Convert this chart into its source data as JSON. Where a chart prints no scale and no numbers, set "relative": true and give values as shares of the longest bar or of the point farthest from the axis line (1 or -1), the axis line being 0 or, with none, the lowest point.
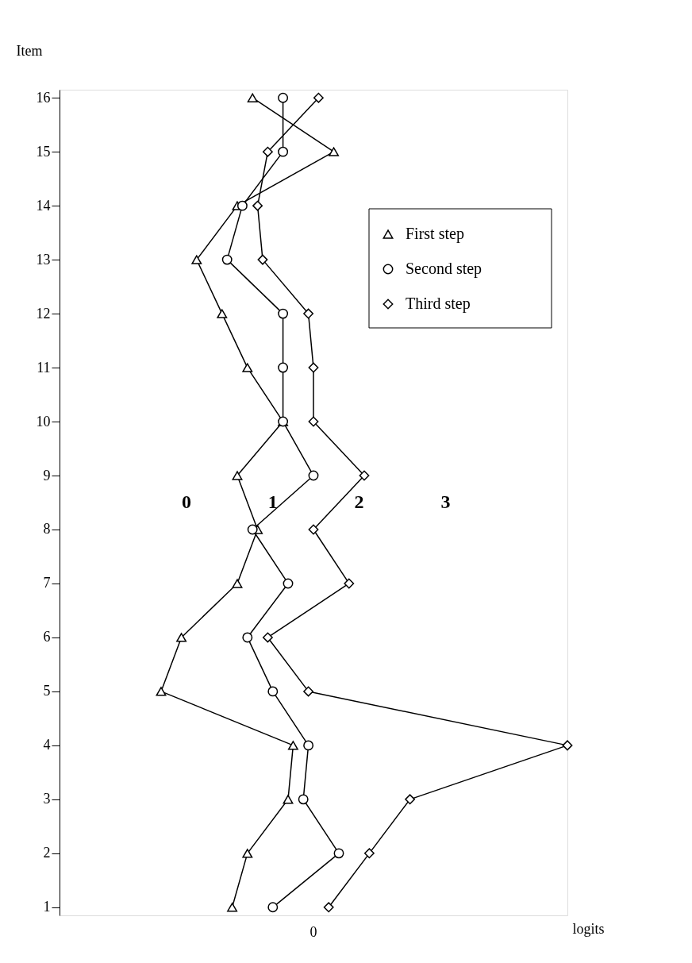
{
  "chart_data": {
    "type": "line",
    "orientation": "horizontal",
    "relative": true,
    "xlabel": "logits",
    "ylabel": "Item",
    "categories": [
      "16",
      "15",
      "14",
      "13",
      "12",
      "11",
      "10",
      "9",
      "8",
      "7",
      "6",
      "5",
      "4",
      "3",
      "2",
      "1"
    ],
    "grid": false,
    "legend": "top right",
    "line_style": "solid",
    "series": [
      {
        "name": "First step",
        "color": "#000000",
        "marker": "triangle",
        "values": [
          0.38,
          0.54,
          0.35,
          0.27,
          0.32,
          0.37,
          0.44,
          0.35,
          0.39,
          0.35,
          0.24,
          0.2,
          0.46,
          0.45,
          0.37,
          0.34
        ]
      },
      {
        "name": "Second step",
        "color": "#000000",
        "marker": "circle",
        "values": [
          0.44,
          0.44,
          0.36,
          0.33,
          0.44,
          0.44,
          0.44,
          0.5,
          0.38,
          0.45,
          0.37,
          0.42,
          0.49,
          0.48,
          0.55,
          0.42
        ]
      },
      {
        "name": "Third step",
        "color": "#000000",
        "marker": "diamond",
        "values": [
          0.51,
          0.41,
          0.39,
          0.4,
          0.49,
          0.5,
          0.5,
          0.6,
          0.5,
          0.57,
          0.41,
          0.49,
          1,
          0.69,
          0.61,
          0.53
        ]
      }
    ],
    "annotations": [
      "0",
      "1",
      "2",
      "3",
      "0"
    ]
  }
}
